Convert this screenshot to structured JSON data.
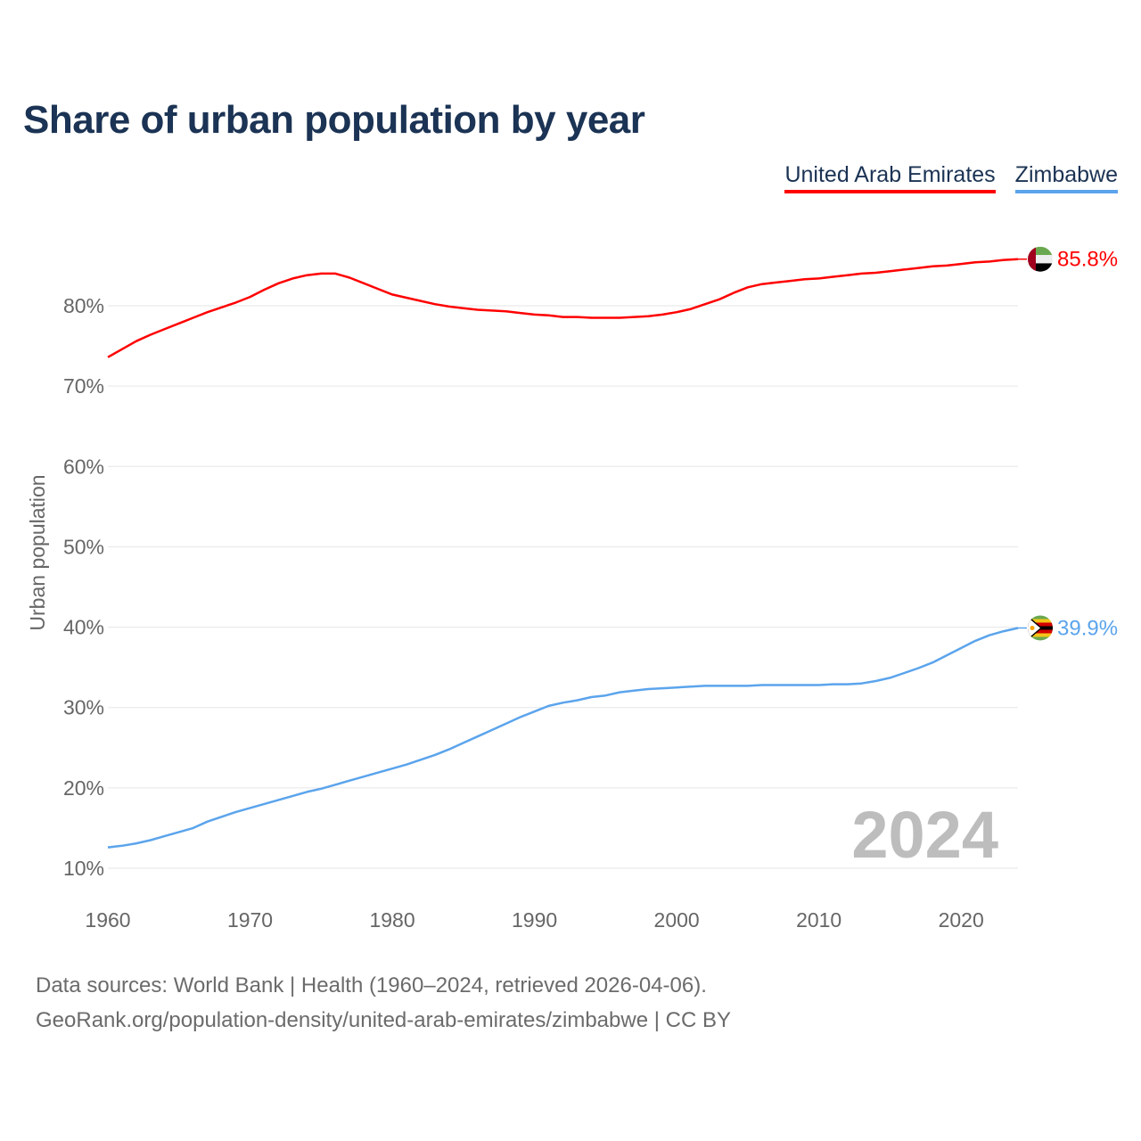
{
  "title": "Share of urban population by year",
  "legend": [
    {
      "label": "United Arab Emirates",
      "color": "#ff0000"
    },
    {
      "label": "Zimbabwe",
      "color": "#5ba4ec"
    }
  ],
  "year_watermark": "2024",
  "footer": {
    "line1": "Data sources: World Bank | Health (1960–2024, retrieved 2026-04-06).",
    "line2": "GeoRank.org/population-density/united-arab-emirates/zimbabwe | CC BY"
  },
  "chart_data": {
    "type": "line",
    "title": "Share of urban population by year",
    "xlabel": "",
    "ylabel": "Urban population",
    "xlim": [
      1960,
      2024
    ],
    "ylim": [
      10,
      90
    ],
    "x_ticks": [
      1960,
      1970,
      1980,
      1990,
      2000,
      2010,
      2020
    ],
    "x_tick_labels": [
      "1960",
      "1970",
      "1980",
      "1990",
      "2000",
      "2010",
      "2020"
    ],
    "y_ticks": [
      10,
      20,
      30,
      40,
      50,
      60,
      70,
      80
    ],
    "y_tick_labels": [
      "10%",
      "20%",
      "30%",
      "40%",
      "50%",
      "60%",
      "70%",
      "80%"
    ],
    "grid": true,
    "legend_position": "top-right",
    "x_start": 1960,
    "series": [
      {
        "name": "United Arab Emirates",
        "color": "#ff0000",
        "end_label": "85.8%",
        "flag": "uae-flag",
        "values": [
          73.6,
          74.6,
          75.6,
          76.4,
          77.1,
          77.8,
          78.5,
          79.2,
          79.8,
          80.4,
          81.1,
          82.0,
          82.8,
          83.4,
          83.8,
          84.0,
          84.0,
          83.5,
          82.8,
          82.1,
          81.4,
          81.0,
          80.6,
          80.2,
          79.9,
          79.7,
          79.5,
          79.4,
          79.3,
          79.1,
          78.9,
          78.8,
          78.6,
          78.6,
          78.5,
          78.5,
          78.5,
          78.6,
          78.7,
          78.9,
          79.2,
          79.6,
          80.2,
          80.8,
          81.6,
          82.3,
          82.7,
          82.9,
          83.1,
          83.3,
          83.4,
          83.6,
          83.8,
          84.0,
          84.1,
          84.3,
          84.5,
          84.7,
          84.9,
          85.0,
          85.2,
          85.4,
          85.5,
          85.7,
          85.8
        ]
      },
      {
        "name": "Zimbabwe",
        "color": "#5ba4ec",
        "end_label": "39.9%",
        "flag": "zimbabwe-flag",
        "values": [
          12.6,
          12.8,
          13.1,
          13.5,
          14.0,
          14.5,
          15.0,
          15.8,
          16.4,
          17.0,
          17.5,
          18.0,
          18.5,
          19.0,
          19.5,
          19.9,
          20.4,
          20.9,
          21.4,
          21.9,
          22.4,
          22.9,
          23.5,
          24.1,
          24.8,
          25.6,
          26.4,
          27.2,
          28.0,
          28.8,
          29.5,
          30.2,
          30.6,
          30.9,
          31.3,
          31.5,
          31.9,
          32.1,
          32.3,
          32.4,
          32.5,
          32.6,
          32.7,
          32.7,
          32.7,
          32.7,
          32.8,
          32.8,
          32.8,
          32.8,
          32.8,
          32.9,
          32.9,
          33.0,
          33.3,
          33.7,
          34.3,
          34.9,
          35.6,
          36.5,
          37.4,
          38.3,
          39.0,
          39.5,
          39.9
        ]
      }
    ]
  }
}
